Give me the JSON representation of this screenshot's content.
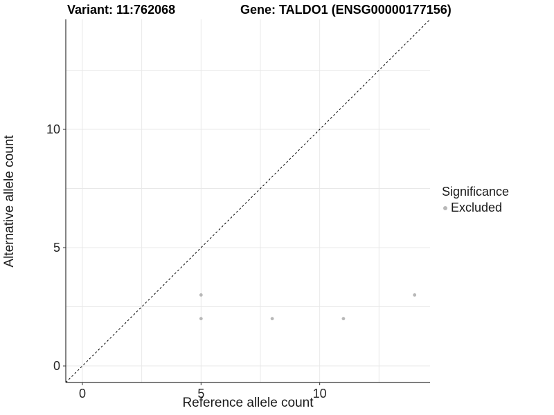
{
  "figure": {
    "title_variant": "Variant: 11:762068",
    "title_gene": "Gene: TALDO1 (ENSG00000177156)"
  },
  "chart_data": {
    "type": "scatter",
    "title": "Variant: 11:762068        Gene: TALDO1 (ENSG00000177156)",
    "xlabel": "Reference allele count",
    "ylabel": "Alternative allele count",
    "xlim": [
      -0.7,
      14.65
    ],
    "ylim": [
      -0.7,
      14.65
    ],
    "x_ticks": [
      0,
      5,
      10
    ],
    "y_ticks": [
      0,
      5,
      10
    ],
    "x_minor_gridlines": [
      2.5,
      7.5,
      12.5
    ],
    "y_minor_gridlines": [
      2.5,
      7.5,
      12.5
    ],
    "grid": true,
    "series": [
      {
        "name": "Excluded",
        "color": "#b8b8b8",
        "points": [
          [
            5,
            3
          ],
          [
            5,
            2
          ],
          [
            8,
            2
          ],
          [
            11,
            2
          ],
          [
            14,
            3
          ]
        ]
      }
    ],
    "identity_line": {
      "equation": "y = x",
      "style": "dashed",
      "color": "#000000"
    },
    "legend": {
      "title": "Significance",
      "position": "right",
      "entries": [
        {
          "label": "Excluded",
          "color": "#b8b8b8"
        }
      ]
    }
  },
  "colors": {
    "background": "#ffffff",
    "gridline": "#e8e8e8",
    "axis_line": "#333333",
    "tick_label": "#262626",
    "point": "#b8b8b8"
  }
}
